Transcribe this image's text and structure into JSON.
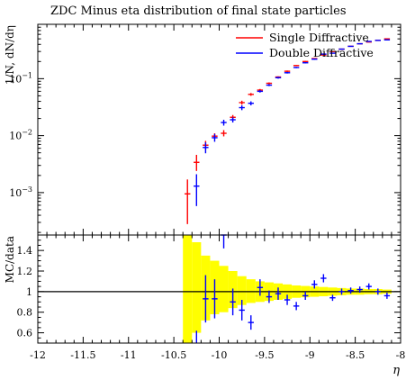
{
  "chart_data": [
    {
      "type": "scatter",
      "title": "ZDC Minus eta distribution of final state particles",
      "ylabel": "1/N, dN/dη",
      "yscale": "log",
      "xlim": [
        -12,
        -8
      ],
      "ylim": [
        0.00018,
        0.9
      ],
      "yticks": [
        {
          "value": 0.001,
          "base": "10",
          "exp": "−3"
        },
        {
          "value": 0.01,
          "base": "10",
          "exp": "−2"
        },
        {
          "value": 0.1,
          "base": "10",
          "exp": "−1"
        }
      ],
      "legend_position": "top-right",
      "series": [
        {
          "name": "Single Diffractive",
          "color": "#ff0000",
          "points": [
            {
              "x": -10.35,
              "y": 0.00095,
              "ylo": 0.00028,
              "yhi": 0.0017
            },
            {
              "x": -10.25,
              "y": 0.0034,
              "ylo": 0.0024,
              "yhi": 0.0046
            },
            {
              "x": -10.15,
              "y": 0.0068,
              "ylo": 0.0057,
              "yhi": 0.0081
            },
            {
              "x": -10.05,
              "y": 0.0098,
              "ylo": 0.0088,
              "yhi": 0.011
            },
            {
              "x": -9.95,
              "y": 0.011,
              "ylo": 0.0097,
              "yhi": 0.0125
            },
            {
              "x": -9.85,
              "y": 0.021,
              "ylo": 0.019,
              "yhi": 0.023
            },
            {
              "x": -9.75,
              "y": 0.038,
              "ylo": 0.035,
              "yhi": 0.041
            },
            {
              "x": -9.65,
              "y": 0.053,
              "ylo": 0.05,
              "yhi": 0.056
            },
            {
              "x": -9.55,
              "y": 0.063,
              "ylo": 0.06,
              "yhi": 0.066
            },
            {
              "x": -9.45,
              "y": 0.083,
              "ylo": 0.08,
              "yhi": 0.086
            },
            {
              "x": -9.35,
              "y": 0.107,
              "ylo": 0.104,
              "yhi": 0.11
            },
            {
              "x": -9.25,
              "y": 0.135,
              "ylo": 0.131,
              "yhi": 0.139
            },
            {
              "x": -9.15,
              "y": 0.17,
              "ylo": 0.166,
              "yhi": 0.174
            },
            {
              "x": -9.05,
              "y": 0.2,
              "ylo": 0.195,
              "yhi": 0.205
            },
            {
              "x": -8.95,
              "y": 0.225,
              "ylo": 0.22,
              "yhi": 0.23
            },
            {
              "x": -8.85,
              "y": 0.26,
              "ylo": 0.255,
              "yhi": 0.265
            },
            {
              "x": -8.75,
              "y": 0.3,
              "ylo": 0.295,
              "yhi": 0.305
            },
            {
              "x": -8.65,
              "y": 0.33,
              "ylo": 0.325,
              "yhi": 0.335
            },
            {
              "x": -8.55,
              "y": 0.37,
              "ylo": 0.365,
              "yhi": 0.375
            },
            {
              "x": -8.45,
              "y": 0.41,
              "ylo": 0.405,
              "yhi": 0.415
            },
            {
              "x": -8.35,
              "y": 0.44,
              "ylo": 0.435,
              "yhi": 0.445
            },
            {
              "x": -8.25,
              "y": 0.47,
              "ylo": 0.465,
              "yhi": 0.475
            },
            {
              "x": -8.15,
              "y": 0.5,
              "ylo": 0.495,
              "yhi": 0.505
            }
          ]
        },
        {
          "name": "Double Diffractive",
          "color": "#0000ff",
          "points": [
            {
              "x": -10.25,
              "y": 0.0013,
              "ylo": 0.00058,
              "yhi": 0.0021
            },
            {
              "x": -10.15,
              "y": 0.0062,
              "ylo": 0.0049,
              "yhi": 0.0076
            },
            {
              "x": -10.05,
              "y": 0.0092,
              "ylo": 0.0078,
              "yhi": 0.0107
            },
            {
              "x": -9.95,
              "y": 0.017,
              "ylo": 0.015,
              "yhi": 0.019
            },
            {
              "x": -9.85,
              "y": 0.019,
              "ylo": 0.017,
              "yhi": 0.021
            },
            {
              "x": -9.75,
              "y": 0.031,
              "ylo": 0.028,
              "yhi": 0.034
            },
            {
              "x": -9.65,
              "y": 0.037,
              "ylo": 0.034,
              "yhi": 0.04
            },
            {
              "x": -9.55,
              "y": 0.06,
              "ylo": 0.057,
              "yhi": 0.063
            },
            {
              "x": -9.45,
              "y": 0.077,
              "ylo": 0.074,
              "yhi": 0.08
            },
            {
              "x": -9.35,
              "y": 0.104,
              "ylo": 0.1,
              "yhi": 0.108
            },
            {
              "x": -9.25,
              "y": 0.127,
              "ylo": 0.123,
              "yhi": 0.131
            },
            {
              "x": -9.15,
              "y": 0.157,
              "ylo": 0.153,
              "yhi": 0.161
            },
            {
              "x": -9.05,
              "y": 0.19,
              "ylo": 0.185,
              "yhi": 0.195
            },
            {
              "x": -8.95,
              "y": 0.22,
              "ylo": 0.215,
              "yhi": 0.225
            },
            {
              "x": -8.85,
              "y": 0.27,
              "ylo": 0.265,
              "yhi": 0.275
            },
            {
              "x": -8.75,
              "y": 0.28,
              "ylo": 0.275,
              "yhi": 0.285
            },
            {
              "x": -8.65,
              "y": 0.33,
              "ylo": 0.325,
              "yhi": 0.335
            },
            {
              "x": -8.55,
              "y": 0.37,
              "ylo": 0.365,
              "yhi": 0.375
            },
            {
              "x": -8.45,
              "y": 0.41,
              "ylo": 0.405,
              "yhi": 0.415
            },
            {
              "x": -8.35,
              "y": 0.45,
              "ylo": 0.445,
              "yhi": 0.455
            },
            {
              "x": -8.25,
              "y": 0.47,
              "ylo": 0.465,
              "yhi": 0.475
            },
            {
              "x": -8.15,
              "y": 0.48,
              "ylo": 0.475,
              "yhi": 0.485
            }
          ]
        }
      ]
    },
    {
      "type": "scatter",
      "ylabel": "MC/data",
      "xlabel": "η",
      "xlim": [
        -12,
        -8
      ],
      "ylim": [
        0.5,
        1.55
      ],
      "xticks": [
        -12,
        -11.5,
        -11,
        -10.5,
        -10,
        -9.5,
        -9,
        -8.5,
        -8
      ],
      "xtick_labels": [
        "-12",
        "-11.5",
        "-11",
        "-10.5",
        "-10",
        "-9.5",
        "-9",
        "-8.5",
        "-8"
      ],
      "yticks": [
        0.6,
        0.8,
        1,
        1.2,
        1.4
      ],
      "ytick_labels": [
        "0.6",
        "0.8",
        "1",
        "1.2",
        "1.4"
      ],
      "reference_line": 1,
      "band_color": "#ffff00",
      "band": [
        {
          "x0": -10.4,
          "x1": -10.3,
          "lo": 0.5,
          "hi": 1.55
        },
        {
          "x0": -10.3,
          "x1": -10.2,
          "lo": 0.6,
          "hi": 1.48
        },
        {
          "x0": -10.2,
          "x1": -10.1,
          "lo": 0.72,
          "hi": 1.35
        },
        {
          "x0": -10.1,
          "x1": -10.0,
          "lo": 0.78,
          "hi": 1.3
        },
        {
          "x0": -10.0,
          "x1": -9.9,
          "lo": 0.8,
          "hi": 1.25
        },
        {
          "x0": -9.9,
          "x1": -9.8,
          "lo": 0.84,
          "hi": 1.2
        },
        {
          "x0": -9.8,
          "x1": -9.7,
          "lo": 0.87,
          "hi": 1.15
        },
        {
          "x0": -9.7,
          "x1": -9.6,
          "lo": 0.89,
          "hi": 1.12
        },
        {
          "x0": -9.6,
          "x1": -9.5,
          "lo": 0.9,
          "hi": 1.1
        },
        {
          "x0": -9.5,
          "x1": -9.4,
          "lo": 0.91,
          "hi": 1.09
        },
        {
          "x0": -9.4,
          "x1": -9.3,
          "lo": 0.92,
          "hi": 1.08
        },
        {
          "x0": -9.3,
          "x1": -9.2,
          "lo": 0.93,
          "hi": 1.07
        },
        {
          "x0": -9.2,
          "x1": -9.1,
          "lo": 0.94,
          "hi": 1.06
        },
        {
          "x0": -9.1,
          "x1": -9.0,
          "lo": 0.945,
          "hi": 1.055
        },
        {
          "x0": -9.0,
          "x1": -8.9,
          "lo": 0.95,
          "hi": 1.05
        },
        {
          "x0": -8.9,
          "x1": -8.8,
          "lo": 0.955,
          "hi": 1.045
        },
        {
          "x0": -8.8,
          "x1": -8.7,
          "lo": 0.96,
          "hi": 1.04
        },
        {
          "x0": -8.7,
          "x1": -8.6,
          "lo": 0.965,
          "hi": 1.035
        },
        {
          "x0": -8.6,
          "x1": -8.5,
          "lo": 0.97,
          "hi": 1.03
        },
        {
          "x0": -8.5,
          "x1": -8.4,
          "lo": 0.97,
          "hi": 1.03
        },
        {
          "x0": -8.4,
          "x1": -8.3,
          "lo": 0.975,
          "hi": 1.025
        },
        {
          "x0": -8.3,
          "x1": -8.2,
          "lo": 0.975,
          "hi": 1.025
        },
        {
          "x0": -8.2,
          "x1": -8.1,
          "lo": 0.98,
          "hi": 1.02
        }
      ],
      "series": [
        {
          "color": "#0000ff",
          "points": [
            {
              "x": -10.25,
              "y": 0.42,
              "ylo": 0.5,
              "yhi": 0.62
            },
            {
              "x": -10.15,
              "y": 0.93,
              "ylo": 0.7,
              "yhi": 1.16
            },
            {
              "x": -10.05,
              "y": 0.93,
              "ylo": 0.74,
              "yhi": 1.12
            },
            {
              "x": -9.95,
              "y": 1.55,
              "ylo": 1.42,
              "yhi": 1.55
            },
            {
              "x": -9.85,
              "y": 0.9,
              "ylo": 0.77,
              "yhi": 1.03
            },
            {
              "x": -9.75,
              "y": 0.82,
              "ylo": 0.72,
              "yhi": 0.92
            },
            {
              "x": -9.65,
              "y": 0.7,
              "ylo": 0.63,
              "yhi": 0.77
            },
            {
              "x": -9.55,
              "y": 1.04,
              "ylo": 0.96,
              "yhi": 1.12
            },
            {
              "x": -9.45,
              "y": 0.95,
              "ylo": 0.89,
              "yhi": 1.01
            },
            {
              "x": -9.35,
              "y": 0.98,
              "ylo": 0.92,
              "yhi": 1.04
            },
            {
              "x": -9.25,
              "y": 0.92,
              "ylo": 0.87,
              "yhi": 0.97
            },
            {
              "x": -9.15,
              "y": 0.86,
              "ylo": 0.82,
              "yhi": 0.9
            },
            {
              "x": -9.05,
              "y": 0.96,
              "ylo": 0.92,
              "yhi": 1.0
            },
            {
              "x": -8.95,
              "y": 1.07,
              "ylo": 1.03,
              "yhi": 1.11
            },
            {
              "x": -8.85,
              "y": 1.13,
              "ylo": 1.09,
              "yhi": 1.17
            },
            {
              "x": -8.75,
              "y": 0.94,
              "ylo": 0.91,
              "yhi": 0.97
            },
            {
              "x": -8.65,
              "y": 1.0,
              "ylo": 0.97,
              "yhi": 1.03
            },
            {
              "x": -8.55,
              "y": 1.01,
              "ylo": 0.98,
              "yhi": 1.04
            },
            {
              "x": -8.45,
              "y": 1.02,
              "ylo": 0.99,
              "yhi": 1.05
            },
            {
              "x": -8.35,
              "y": 1.05,
              "ylo": 1.02,
              "yhi": 1.08
            },
            {
              "x": -8.25,
              "y": 1.0,
              "ylo": 0.97,
              "yhi": 1.03
            },
            {
              "x": -8.15,
              "y": 0.96,
              "ylo": 0.93,
              "yhi": 0.99
            }
          ]
        }
      ]
    }
  ]
}
